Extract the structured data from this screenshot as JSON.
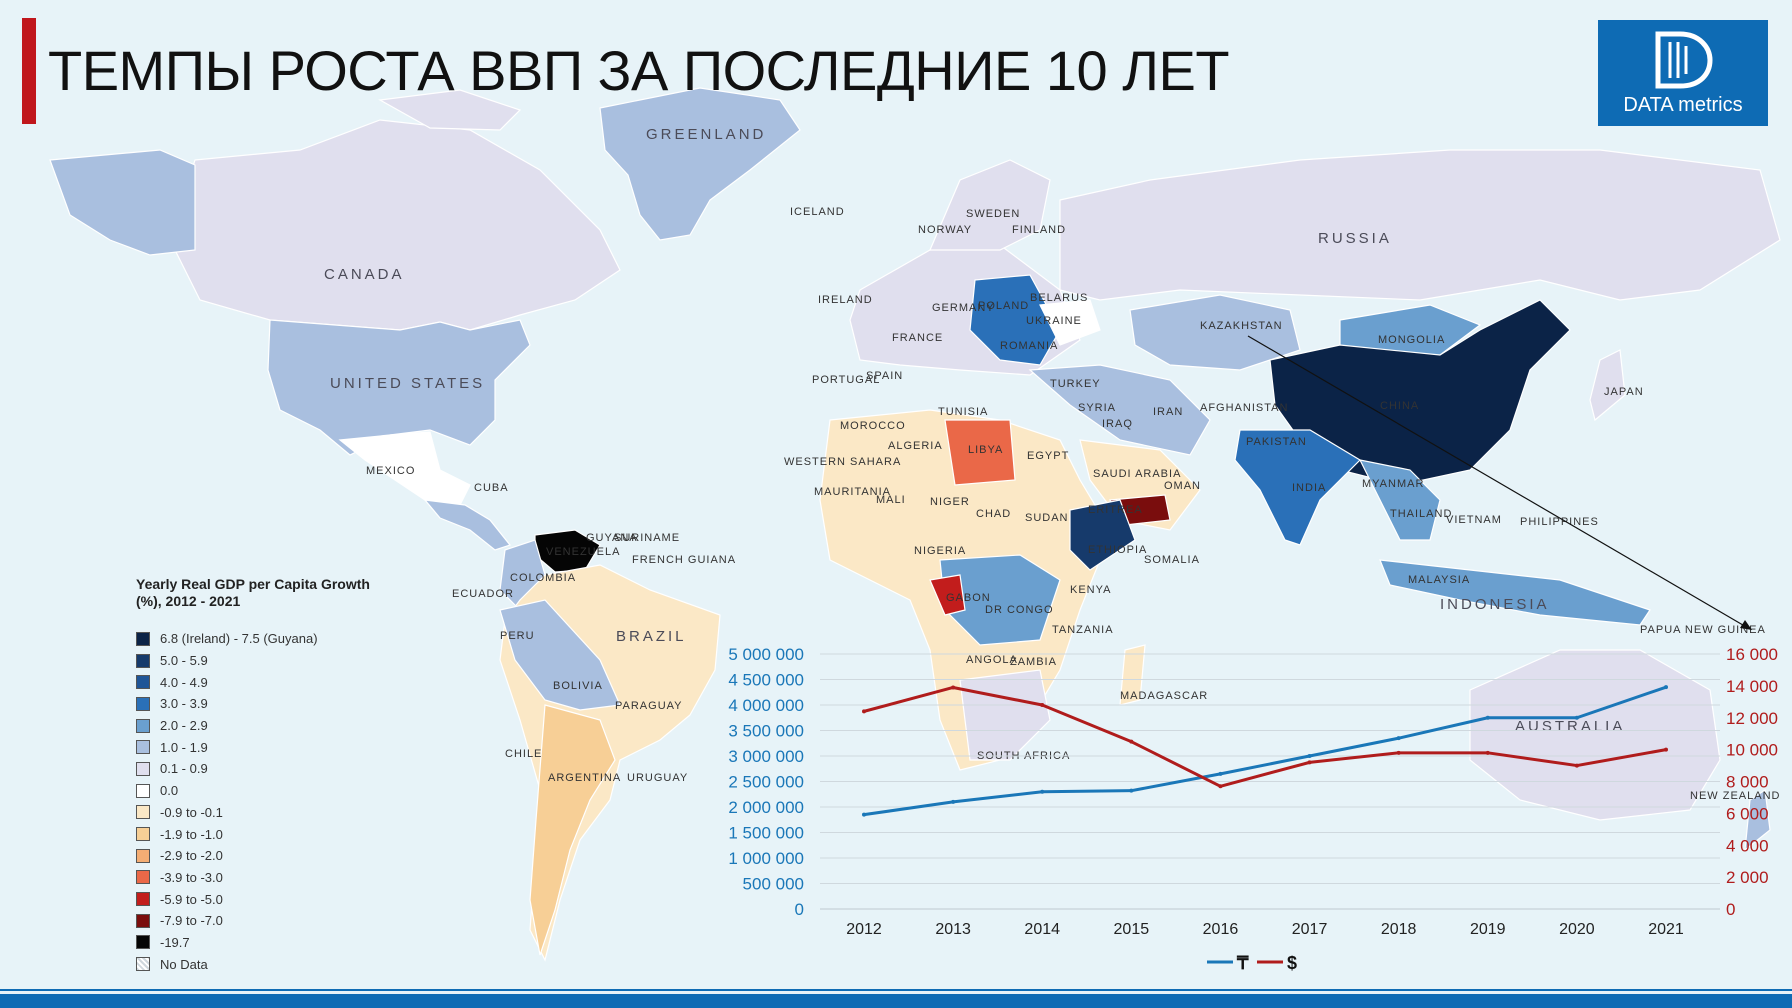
{
  "header": {
    "title": "ТЕМПЫ РОСТА ВВП ЗА ПОСЛЕДНИЕ 10 ЛЕТ",
    "logo_text": "DATA metrics"
  },
  "map": {
    "countries": [
      "GREENLAND",
      "CANADA",
      "UNITED STATES",
      "RUSSIA",
      "KAZAKHSTAN",
      "MONGOLIA",
      "CHINA",
      "BRAZIL",
      "ARGENTINA",
      "INDONESIA",
      "AUSTRALIA",
      "SOUTH AFRICA",
      "MEXICO",
      "LIBYA",
      "ALGERIA",
      "EGYPT",
      "SUDAN",
      "CHAD",
      "NIGER",
      "MALI",
      "NIGERIA",
      "INDIA",
      "PAKISTAN",
      "IRAN",
      "TURKEY",
      "UKRAINE",
      "POLAND",
      "FRANCE",
      "SPAIN",
      "PERU",
      "BOLIVIA",
      "CHILE",
      "COLOMBIA",
      "VENEZUELA",
      "DR CONGO",
      "ANGOLA",
      "ZAMBIA",
      "KENYA",
      "SOMALIA",
      "ETHIOPIA",
      "TANZANIA",
      "SAUDI ARABIA",
      "OMAN",
      "IRAQ",
      "JAPAN",
      "PHILIPPINES",
      "MALAYSIA",
      "NEW ZEALAND",
      "MADAGASCAR",
      "CUBA",
      "ECUADOR",
      "URUGUAY",
      "PARAGUAY",
      "MAURITANIA",
      "WESTERN SAHARA",
      "MOROCCO",
      "IRELAND",
      "FINLAND",
      "SWEDEN",
      "NORWAY",
      "ICELAND",
      "BELARUS",
      "SYRIA",
      "AFGHANISTAN",
      "GABON",
      "PORTUGAL",
      "GERMANY",
      "ROMANIA",
      "FRENCH GUIANA",
      "SURINAME",
      "GUYANA",
      "TUNISIA",
      "ERITREA",
      "VIETNAM",
      "THAILAND",
      "MYANMAR",
      "PAPUA NEW GUINEA"
    ]
  },
  "legend": {
    "title": "Yearly Real GDP per Capita Growth (%), 2012 - 2021",
    "items": [
      {
        "label": "6.8 (Ireland) - 7.5 (Guyana)",
        "color": "#0b2347"
      },
      {
        "label": "5.0 - 5.9",
        "color": "#163a6b"
      },
      {
        "label": "4.0 - 4.9",
        "color": "#1f5597"
      },
      {
        "label": "3.0 - 3.9",
        "color": "#2a70b8"
      },
      {
        "label": "2.0 - 2.9",
        "color": "#6a9fcf"
      },
      {
        "label": "1.0 - 1.9",
        "color": "#a9bfdf"
      },
      {
        "label": "0.1 - 0.9",
        "color": "#e0dfee"
      },
      {
        "label": "0.0",
        "color": "#ffffff"
      },
      {
        "label": "-0.9 to -0.1",
        "color": "#fbe8c6"
      },
      {
        "label": "-1.9 to -1.0",
        "color": "#f7cf96"
      },
      {
        "label": "-2.9 to -2.0",
        "color": "#f4ad74"
      },
      {
        "label": "-3.9 to -3.0",
        "color": "#ea6848"
      },
      {
        "label": "-5.9 to -5.0",
        "color": "#c21d1c"
      },
      {
        "label": "-7.9 to -7.0",
        "color": "#7a0d0d"
      },
      {
        "label": "-19.7",
        "color": "#050505"
      },
      {
        "label": "No Data",
        "color": "#cfd7dd"
      }
    ]
  },
  "chart_data": {
    "type": "line",
    "categories": [
      "2012",
      "2013",
      "2014",
      "2015",
      "2016",
      "2017",
      "2018",
      "2019",
      "2020",
      "2021"
    ],
    "series": [
      {
        "name": "₸",
        "axis": "left",
        "color": "#1a77b8",
        "values": [
          1850000,
          2100000,
          2300000,
          2320000,
          2650000,
          3000000,
          3350000,
          3750000,
          3750000,
          4350000
        ]
      },
      {
        "name": "$",
        "axis": "right",
        "color": "#b01c1c",
        "values": [
          12400,
          13900,
          12800,
          10500,
          7700,
          9200,
          9800,
          9800,
          9000,
          10000
        ]
      }
    ],
    "y_left": {
      "min": 0,
      "max": 5000000,
      "ticks": [
        "0",
        "500 000",
        "1 000 000",
        "1 500 000",
        "2 000 000",
        "2 500 000",
        "3 000 000",
        "3 500 000",
        "4 000 000",
        "4 500 000",
        "5 000 000"
      ],
      "color": "#1a77b8"
    },
    "y_right": {
      "min": 0,
      "max": 16000,
      "ticks": [
        "0",
        "2 000",
        "4 000",
        "6 000",
        "8 000",
        "10 000",
        "12 000",
        "14 000",
        "16 000"
      ],
      "color": "#b01c1c"
    },
    "grid": true,
    "legend_position": "bottom"
  },
  "colors": {
    "ocean": "#e7f3f8",
    "accent_red": "#c0161c",
    "brand_blue": "#0e6bb4"
  }
}
